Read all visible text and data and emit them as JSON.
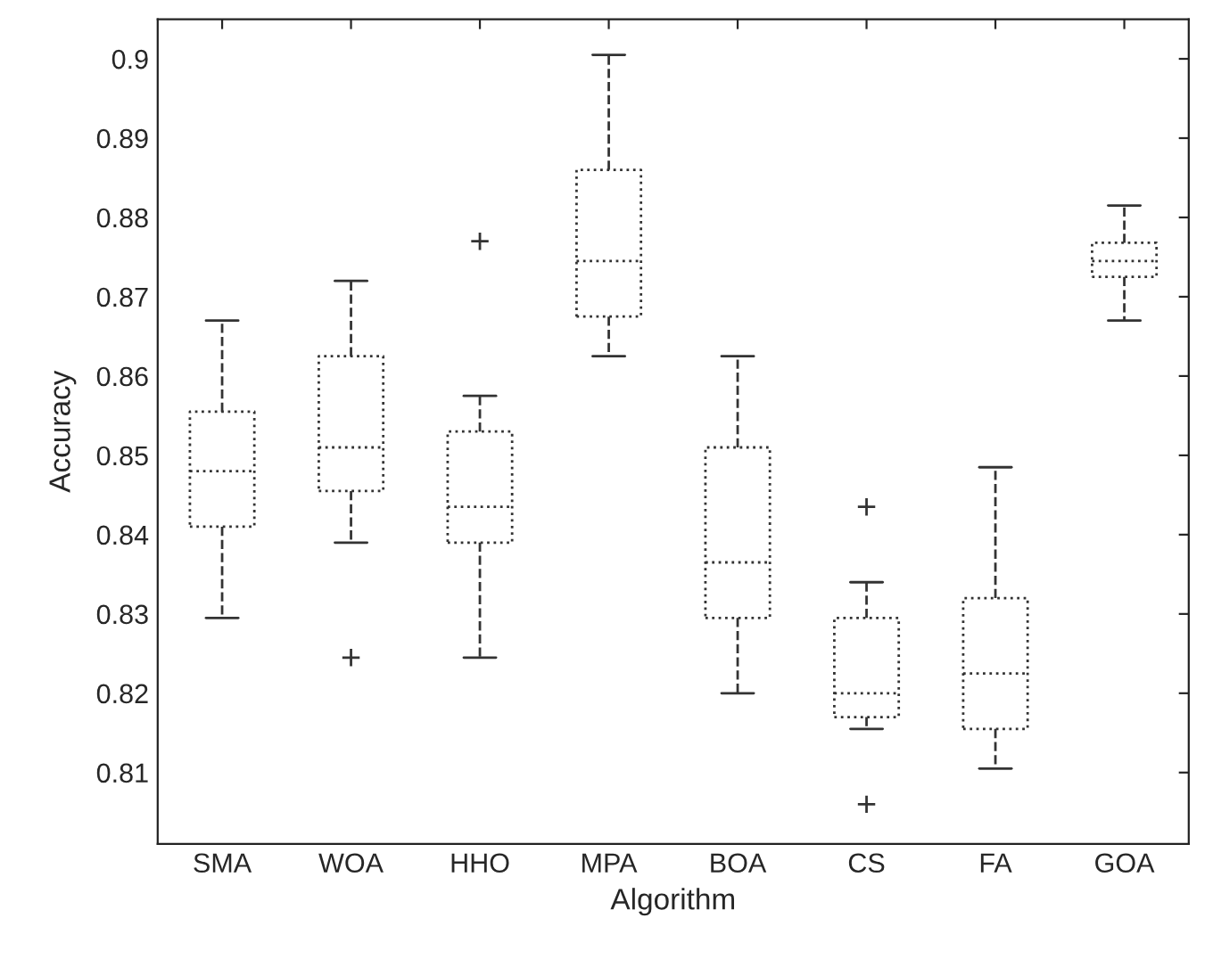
{
  "chart_data": {
    "type": "box",
    "xlabel": "Algorithm",
    "ylabel": "Accuracy",
    "categories": [
      "SMA",
      "WOA",
      "HHO",
      "MPA",
      "BOA",
      "CS",
      "FA",
      "GOA"
    ],
    "boxes": [
      {
        "low": 0.8295,
        "q1": 0.841,
        "median": 0.848,
        "q3": 0.8555,
        "high": 0.867
      },
      {
        "low": 0.839,
        "q1": 0.8455,
        "median": 0.851,
        "q3": 0.8625,
        "high": 0.872,
        "outliers": [
          0.8245
        ]
      },
      {
        "low": 0.8245,
        "q1": 0.839,
        "median": 0.8435,
        "q3": 0.853,
        "high": 0.8575,
        "outliers": [
          0.877
        ]
      },
      {
        "low": 0.8625,
        "q1": 0.8675,
        "median": 0.8745,
        "q3": 0.886,
        "high": 0.9005
      },
      {
        "low": 0.82,
        "q1": 0.8295,
        "median": 0.8365,
        "q3": 0.851,
        "high": 0.8625
      },
      {
        "low": 0.8155,
        "q1": 0.817,
        "median": 0.82,
        "q3": 0.8295,
        "high": 0.834,
        "outliers": [
          0.8435,
          0.806
        ]
      },
      {
        "low": 0.8105,
        "q1": 0.8155,
        "median": 0.8225,
        "q3": 0.832,
        "high": 0.8485
      },
      {
        "low": 0.867,
        "q1": 0.8725,
        "median": 0.8745,
        "q3": 0.8768,
        "high": 0.8815
      }
    ],
    "color": "#333333",
    "ylim": [
      0.801,
      0.905
    ],
    "yticks": [
      0.81,
      0.82,
      0.83,
      0.84,
      0.85,
      0.86,
      0.87,
      0.88,
      0.89,
      0.9
    ],
    "grid": false
  }
}
